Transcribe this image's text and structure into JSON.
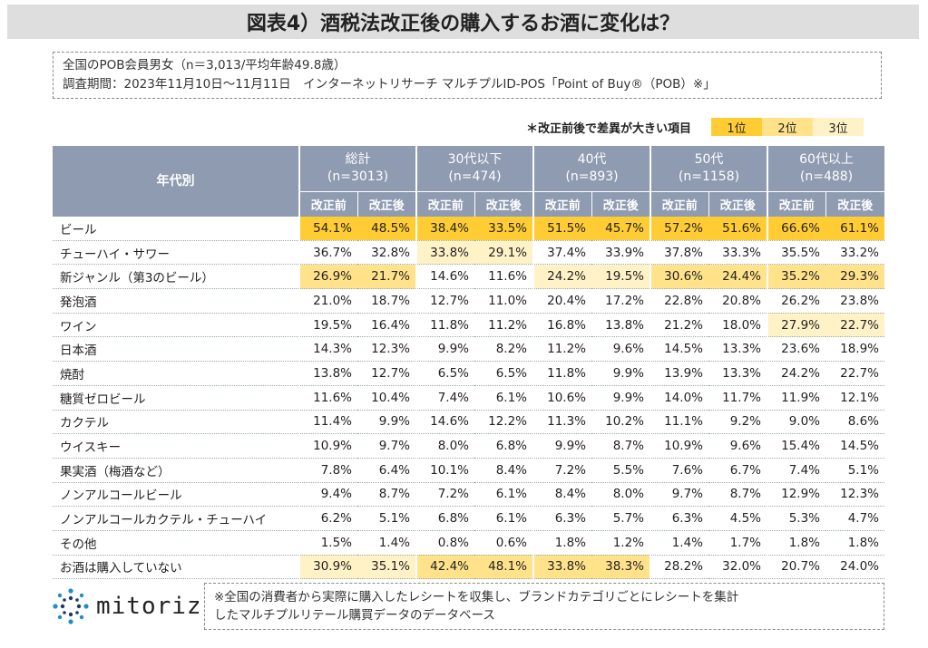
{
  "title": "図表4）酒税法改正後の購入するお酒に変化は？",
  "info": {
    "line1": "全国のPOB会員男女（n＝3,013/平均年齢49.8歳）",
    "line2": "調査期間：2023年11月10日～11月11日　インターネットリサーチ マルチプルID-POS「Point of Buy®（POB）※」"
  },
  "legend": {
    "note": "＊改正前後で差異が大きい項目",
    "ranks": [
      "1位",
      "2位",
      "3位"
    ],
    "colors": {
      "1": "#ffcd33",
      "2": "#ffe28a",
      "3": "#fff2c7"
    }
  },
  "chart_data": {
    "type": "table",
    "row_header": "年代別",
    "groups": [
      {
        "name": "総計",
        "n": "(n=3013)"
      },
      {
        "name": "30代以下",
        "n": "(n=474)"
      },
      {
        "name": "40代",
        "n": "(n=893)"
      },
      {
        "name": "50代",
        "n": "(n=1158)"
      },
      {
        "name": "60代以上",
        "n": "(n=488)"
      }
    ],
    "subcolumns": [
      "改正前",
      "改正後"
    ],
    "rows": [
      {
        "label": "ビール",
        "values": [
          "54.1%",
          "48.5%",
          "38.4%",
          "33.5%",
          "51.5%",
          "45.7%",
          "57.2%",
          "51.6%",
          "66.6%",
          "61.1%"
        ],
        "ranks": [
          1,
          1,
          1,
          1,
          1,
          1,
          1,
          1,
          1,
          1
        ]
      },
      {
        "label": "チューハイ・サワー",
        "values": [
          "36.7%",
          "32.8%",
          "33.8%",
          "29.1%",
          "37.4%",
          "33.9%",
          "37.8%",
          "33.3%",
          "35.5%",
          "33.2%"
        ],
        "ranks": [
          0,
          0,
          3,
          3,
          0,
          0,
          0,
          0,
          0,
          0
        ]
      },
      {
        "label": "新ジャンル（第3のビール）",
        "values": [
          "26.9%",
          "21.7%",
          "14.6%",
          "11.6%",
          "24.2%",
          "19.5%",
          "30.6%",
          "24.4%",
          "35.2%",
          "29.3%"
        ],
        "ranks": [
          2,
          2,
          0,
          0,
          3,
          3,
          2,
          2,
          2,
          2
        ]
      },
      {
        "label": "発泡酒",
        "values": [
          "21.0%",
          "18.7%",
          "12.7%",
          "11.0%",
          "20.4%",
          "17.2%",
          "22.8%",
          "20.8%",
          "26.2%",
          "23.8%"
        ],
        "ranks": [
          0,
          0,
          0,
          0,
          0,
          0,
          0,
          0,
          0,
          0
        ]
      },
      {
        "label": "ワイン",
        "values": [
          "19.5%",
          "16.4%",
          "11.8%",
          "11.2%",
          "16.8%",
          "13.8%",
          "21.2%",
          "18.0%",
          "27.9%",
          "22.7%"
        ],
        "ranks": [
          0,
          0,
          0,
          0,
          0,
          0,
          0,
          0,
          3,
          3
        ]
      },
      {
        "label": "日本酒",
        "values": [
          "14.3%",
          "12.3%",
          "9.9%",
          "8.2%",
          "11.2%",
          "9.6%",
          "14.5%",
          "13.3%",
          "23.6%",
          "18.9%"
        ],
        "ranks": [
          0,
          0,
          0,
          0,
          0,
          0,
          0,
          0,
          0,
          0
        ]
      },
      {
        "label": "焼酎",
        "values": [
          "13.8%",
          "12.7%",
          "6.5%",
          "6.5%",
          "11.8%",
          "9.9%",
          "13.9%",
          "13.3%",
          "24.2%",
          "22.7%"
        ],
        "ranks": [
          0,
          0,
          0,
          0,
          0,
          0,
          0,
          0,
          0,
          0
        ]
      },
      {
        "label": "糖質ゼロビール",
        "values": [
          "11.6%",
          "10.4%",
          "7.4%",
          "6.1%",
          "10.6%",
          "9.9%",
          "14.0%",
          "11.7%",
          "11.9%",
          "12.1%"
        ],
        "ranks": [
          0,
          0,
          0,
          0,
          0,
          0,
          0,
          0,
          0,
          0
        ]
      },
      {
        "label": "カクテル",
        "values": [
          "11.4%",
          "9.9%",
          "14.6%",
          "12.2%",
          "11.3%",
          "10.2%",
          "11.1%",
          "9.2%",
          "9.0%",
          "8.6%"
        ],
        "ranks": [
          0,
          0,
          0,
          0,
          0,
          0,
          0,
          0,
          0,
          0
        ]
      },
      {
        "label": "ウイスキー",
        "values": [
          "10.9%",
          "9.7%",
          "8.0%",
          "6.8%",
          "9.9%",
          "8.7%",
          "10.9%",
          "9.6%",
          "15.4%",
          "14.5%"
        ],
        "ranks": [
          0,
          0,
          0,
          0,
          0,
          0,
          0,
          0,
          0,
          0
        ]
      },
      {
        "label": "果実酒（梅酒など）",
        "values": [
          "7.8%",
          "6.4%",
          "10.1%",
          "8.4%",
          "7.2%",
          "5.5%",
          "7.6%",
          "6.7%",
          "7.4%",
          "5.1%"
        ],
        "ranks": [
          0,
          0,
          0,
          0,
          0,
          0,
          0,
          0,
          0,
          0
        ]
      },
      {
        "label": "ノンアルコールビール",
        "values": [
          "9.4%",
          "8.7%",
          "7.2%",
          "6.1%",
          "8.4%",
          "8.0%",
          "9.7%",
          "8.7%",
          "12.9%",
          "12.3%"
        ],
        "ranks": [
          0,
          0,
          0,
          0,
          0,
          0,
          0,
          0,
          0,
          0
        ]
      },
      {
        "label": "ノンアルコールカクテル・チューハイ",
        "values": [
          "6.2%",
          "5.1%",
          "6.8%",
          "6.1%",
          "6.3%",
          "5.7%",
          "6.3%",
          "4.5%",
          "5.3%",
          "4.7%"
        ],
        "ranks": [
          0,
          0,
          0,
          0,
          0,
          0,
          0,
          0,
          0,
          0
        ]
      },
      {
        "label": "その他",
        "values": [
          "1.5%",
          "1.4%",
          "0.8%",
          "0.6%",
          "1.8%",
          "1.2%",
          "1.4%",
          "1.7%",
          "1.8%",
          "1.8%"
        ],
        "ranks": [
          0,
          0,
          0,
          0,
          0,
          0,
          0,
          0,
          0,
          0
        ]
      },
      {
        "label": "お酒は購入していない",
        "values": [
          "30.9%",
          "35.1%",
          "42.4%",
          "48.1%",
          "33.8%",
          "38.3%",
          "28.2%",
          "32.0%",
          "20.7%",
          "24.0%"
        ],
        "ranks": [
          3,
          3,
          2,
          2,
          2,
          2,
          0,
          0,
          0,
          0
        ]
      }
    ]
  },
  "logo_text": "mitoriz",
  "footnote": {
    "line1": "※全国の消費者から実際に購入したレシートを収集し、ブランドカテゴリごとにレシートを集計",
    "line2": "したマルチプルリテール購買データのデータベース"
  }
}
